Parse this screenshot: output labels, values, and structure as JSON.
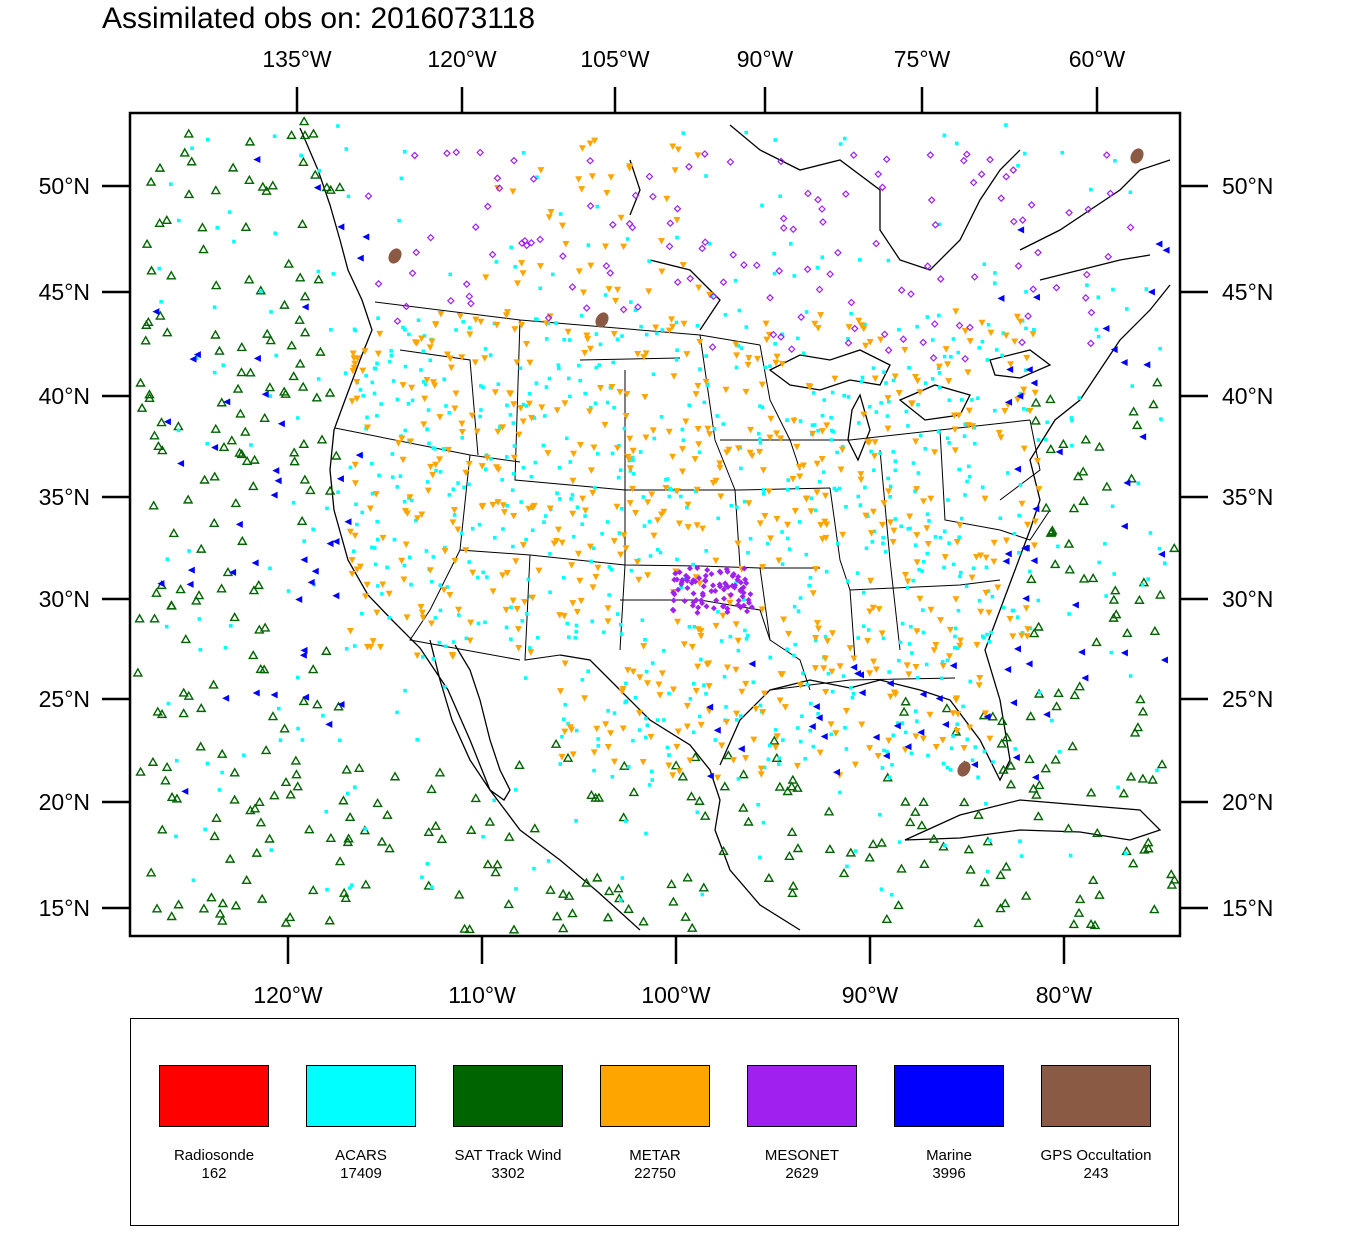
{
  "title": "Assimilated obs on: 2016073118",
  "top_axis_labels": [
    "135°W",
    "120°W",
    "105°W",
    "90°W",
    "75°W",
    "60°W"
  ],
  "bottom_axis_labels": [
    "120°W",
    "110°W",
    "100°W",
    "90°W",
    "80°W"
  ],
  "lat_labels": [
    "50°N",
    "45°N",
    "40°N",
    "35°N",
    "30°N",
    "25°N",
    "20°N",
    "15°N"
  ],
  "legend": [
    {
      "name": "Radiosonde",
      "count": "162",
      "color": "#ff0000"
    },
    {
      "name": "ACARS",
      "count": "17409",
      "color": "#00ffff"
    },
    {
      "name": "SAT Track Wind",
      "count": "3302",
      "color": "#006400"
    },
    {
      "name": "METAR",
      "count": "22750",
      "color": "#ffa500"
    },
    {
      "name": "MESONET",
      "count": "2629",
      "color": "#a020f0"
    },
    {
      "name": "Marine",
      "count": "3996",
      "color": "#0000ff"
    },
    {
      "name": "GPS Occultation",
      "count": "243",
      "color": "#8b5a44"
    }
  ]
}
